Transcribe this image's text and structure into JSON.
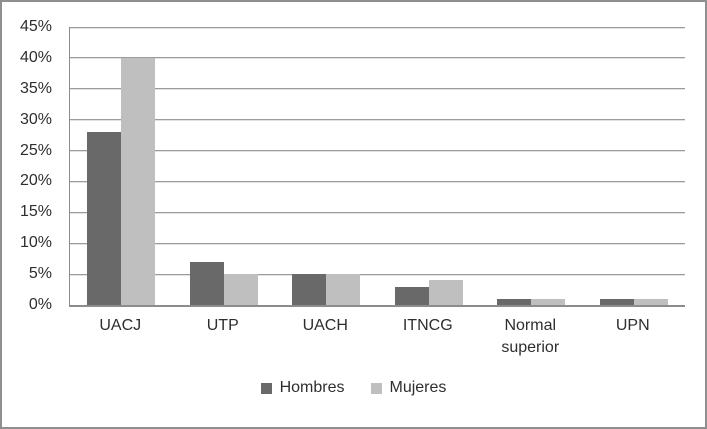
{
  "chart_data": {
    "type": "bar",
    "categories": [
      "UACJ",
      "UTP",
      "UACH",
      "ITNCG",
      "Normal superior",
      "UPN"
    ],
    "series": [
      {
        "name": "Hombres",
        "color": "#696969",
        "values": [
          28,
          7,
          5,
          3,
          1,
          1
        ]
      },
      {
        "name": "Mujeres",
        "color": "#bfbfbf",
        "values": [
          40,
          5,
          5,
          4,
          1,
          1
        ]
      }
    ],
    "title": "",
    "xlabel": "",
    "ylabel": "",
    "ylim": [
      0,
      45
    ],
    "y_tick_step": 5,
    "y_ticks": [
      "45%",
      "40%",
      "35%",
      "30%",
      "25%",
      "20%",
      "15%",
      "10%",
      "5%",
      "0%"
    ],
    "grid": true,
    "legend_position": "bottom",
    "colors": {
      "grid_line": "#9c9c9c",
      "axis_line": "#8c8c8c",
      "frame_border": "#8f8f8f",
      "text": "#2e2e2e",
      "background": "#ffffff"
    }
  }
}
